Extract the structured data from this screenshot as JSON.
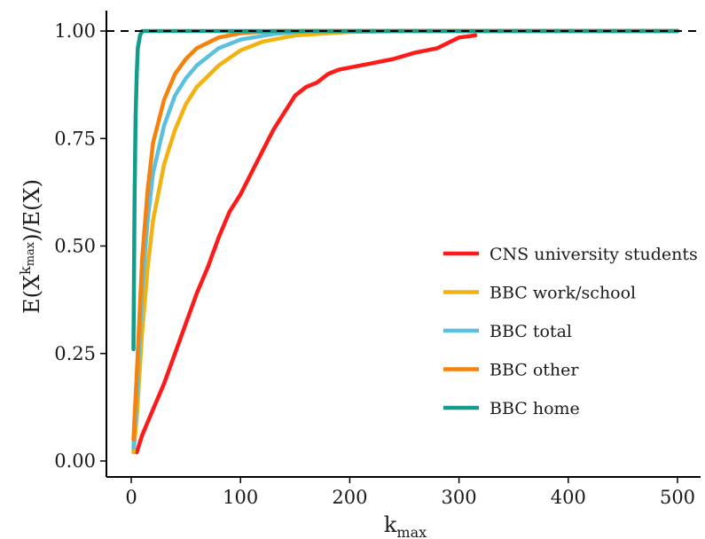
{
  "chart_data": {
    "type": "line",
    "title": "",
    "xlabel": {
      "base": "k",
      "sub": "max"
    },
    "ylabel": {
      "prefix": "E(X",
      "sup_base": "k",
      "sup_sub": "max",
      "suffix": ")/E(X)"
    },
    "xlim": [
      0,
      500
    ],
    "ylim": [
      0,
      1
    ],
    "x_ticks": [
      0,
      100,
      200,
      300,
      400,
      500
    ],
    "x_tick_labels": [
      "0",
      "100",
      "200",
      "300",
      "400",
      "500"
    ],
    "y_ticks": [
      0,
      0.25,
      0.5,
      0.75,
      1.0
    ],
    "y_tick_labels": [
      "0.00",
      "0.25",
      "0.50",
      "0.75",
      "1.00"
    ],
    "grid": false,
    "legend_position": "right",
    "reference_line": {
      "y": 1.0,
      "style": "dashed",
      "color": "#000000"
    },
    "series": [
      {
        "name": "CNS university students",
        "color": "#ff1a1a",
        "points": [
          [
            5,
            0.02
          ],
          [
            10,
            0.06
          ],
          [
            20,
            0.12
          ],
          [
            30,
            0.18
          ],
          [
            40,
            0.25
          ],
          [
            50,
            0.32
          ],
          [
            60,
            0.39
          ],
          [
            70,
            0.45
          ],
          [
            80,
            0.52
          ],
          [
            90,
            0.58
          ],
          [
            100,
            0.62
          ],
          [
            110,
            0.67
          ],
          [
            120,
            0.72
          ],
          [
            130,
            0.77
          ],
          [
            140,
            0.81
          ],
          [
            150,
            0.85
          ],
          [
            160,
            0.87
          ],
          [
            170,
            0.88
          ],
          [
            180,
            0.9
          ],
          [
            190,
            0.91
          ],
          [
            200,
            0.915
          ],
          [
            220,
            0.925
          ],
          [
            240,
            0.935
          ],
          [
            260,
            0.95
          ],
          [
            280,
            0.96
          ],
          [
            300,
            0.985
          ],
          [
            315,
            0.99
          ]
        ]
      },
      {
        "name": "BBC work/school",
        "color": "#f2b20f",
        "points": [
          [
            2,
            0.02
          ],
          [
            5,
            0.1
          ],
          [
            10,
            0.3
          ],
          [
            15,
            0.45
          ],
          [
            20,
            0.56
          ],
          [
            30,
            0.69
          ],
          [
            40,
            0.77
          ],
          [
            50,
            0.83
          ],
          [
            60,
            0.87
          ],
          [
            80,
            0.92
          ],
          [
            100,
            0.955
          ],
          [
            120,
            0.975
          ],
          [
            150,
            0.99
          ],
          [
            200,
            0.998
          ],
          [
            250,
            1.0
          ],
          [
            500,
            1.0
          ]
        ]
      },
      {
        "name": "BBC total",
        "color": "#5bc0e0",
        "points": [
          [
            2,
            0.03
          ],
          [
            5,
            0.15
          ],
          [
            10,
            0.4
          ],
          [
            15,
            0.56
          ],
          [
            20,
            0.67
          ],
          [
            30,
            0.78
          ],
          [
            40,
            0.85
          ],
          [
            50,
            0.89
          ],
          [
            60,
            0.92
          ],
          [
            80,
            0.96
          ],
          [
            100,
            0.98
          ],
          [
            130,
            0.993
          ],
          [
            160,
            1.0
          ],
          [
            500,
            1.0
          ]
        ]
      },
      {
        "name": "BBC other",
        "color": "#f5820d",
        "points": [
          [
            2,
            0.05
          ],
          [
            5,
            0.2
          ],
          [
            10,
            0.47
          ],
          [
            15,
            0.63
          ],
          [
            20,
            0.74
          ],
          [
            30,
            0.84
          ],
          [
            40,
            0.9
          ],
          [
            50,
            0.935
          ],
          [
            60,
            0.96
          ],
          [
            80,
            0.985
          ],
          [
            100,
            0.995
          ],
          [
            130,
            1.0
          ],
          [
            500,
            1.0
          ]
        ]
      },
      {
        "name": "BBC home",
        "color": "#119c8c",
        "points": [
          [
            2,
            0.26
          ],
          [
            3,
            0.6
          ],
          [
            4,
            0.8
          ],
          [
            5,
            0.9
          ],
          [
            6,
            0.96
          ],
          [
            8,
            0.99
          ],
          [
            10,
            1.0
          ],
          [
            500,
            1.0
          ]
        ]
      }
    ]
  }
}
